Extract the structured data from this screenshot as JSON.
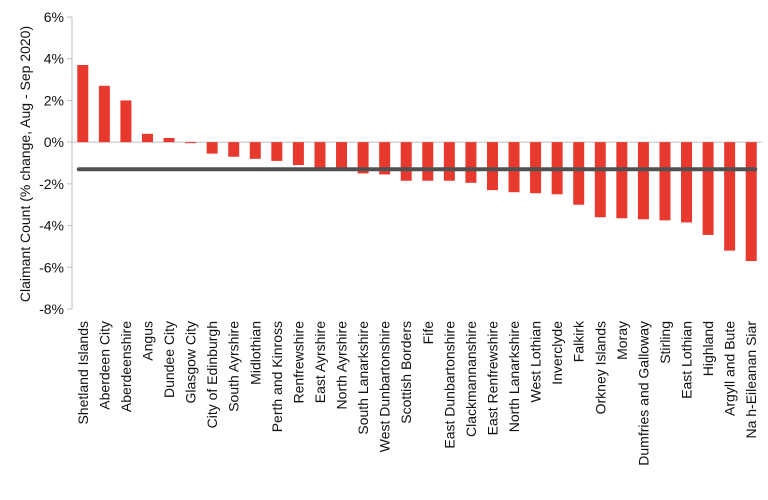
{
  "chart_data": {
    "type": "bar",
    "title": "",
    "ylabel": "Claimant Count (% change, Aug - Sep 2020)",
    "xlabel": "",
    "ylim": [
      -8,
      6
    ],
    "ytick_step": 2,
    "ytick_labels": [
      "6%",
      "4%",
      "2%",
      "0%",
      "-2%",
      "-4%",
      "-6%",
      "-8%"
    ],
    "grid": false,
    "legend": "none",
    "bar_color": "#e8392e",
    "reference_line": {
      "value": -1.3,
      "color": "#505050"
    },
    "categories": [
      "Shetland Islands",
      "Aberdeen City",
      "Aberdeenshire",
      "Angus",
      "Dundee City",
      "Glasgow City",
      "City of Edinburgh",
      "South Ayrshire",
      "Midlothian",
      "Perth and Kinross",
      "Renfrewshire",
      "East Ayrshire",
      "North Ayrshire",
      "South Lanarkshire",
      "West Dunbartonshire",
      "Scottish Borders",
      "Fife",
      "East Dunbartonshire",
      "Clackmannanshire",
      "East Renfrewshire",
      "North Lanarkshire",
      "West Lothian",
      "Inverclyde",
      "Falkirk",
      "Orkney Islands",
      "Moray",
      "Dumfries and Galloway",
      "Stirling",
      "East Lothian",
      "Highland",
      "Argyll and Bute",
      "Na h-Eileanan Siar"
    ],
    "values": [
      3.7,
      2.7,
      2.0,
      0.4,
      0.2,
      -0.05,
      -0.55,
      -0.7,
      -0.8,
      -0.9,
      -1.1,
      -1.25,
      -1.3,
      -1.5,
      -1.55,
      -1.85,
      -1.85,
      -1.85,
      -1.95,
      -2.3,
      -2.4,
      -2.45,
      -2.5,
      -3.0,
      -3.6,
      -3.65,
      -3.7,
      -3.75,
      -3.85,
      -4.45,
      -5.2,
      -5.7
    ]
  }
}
